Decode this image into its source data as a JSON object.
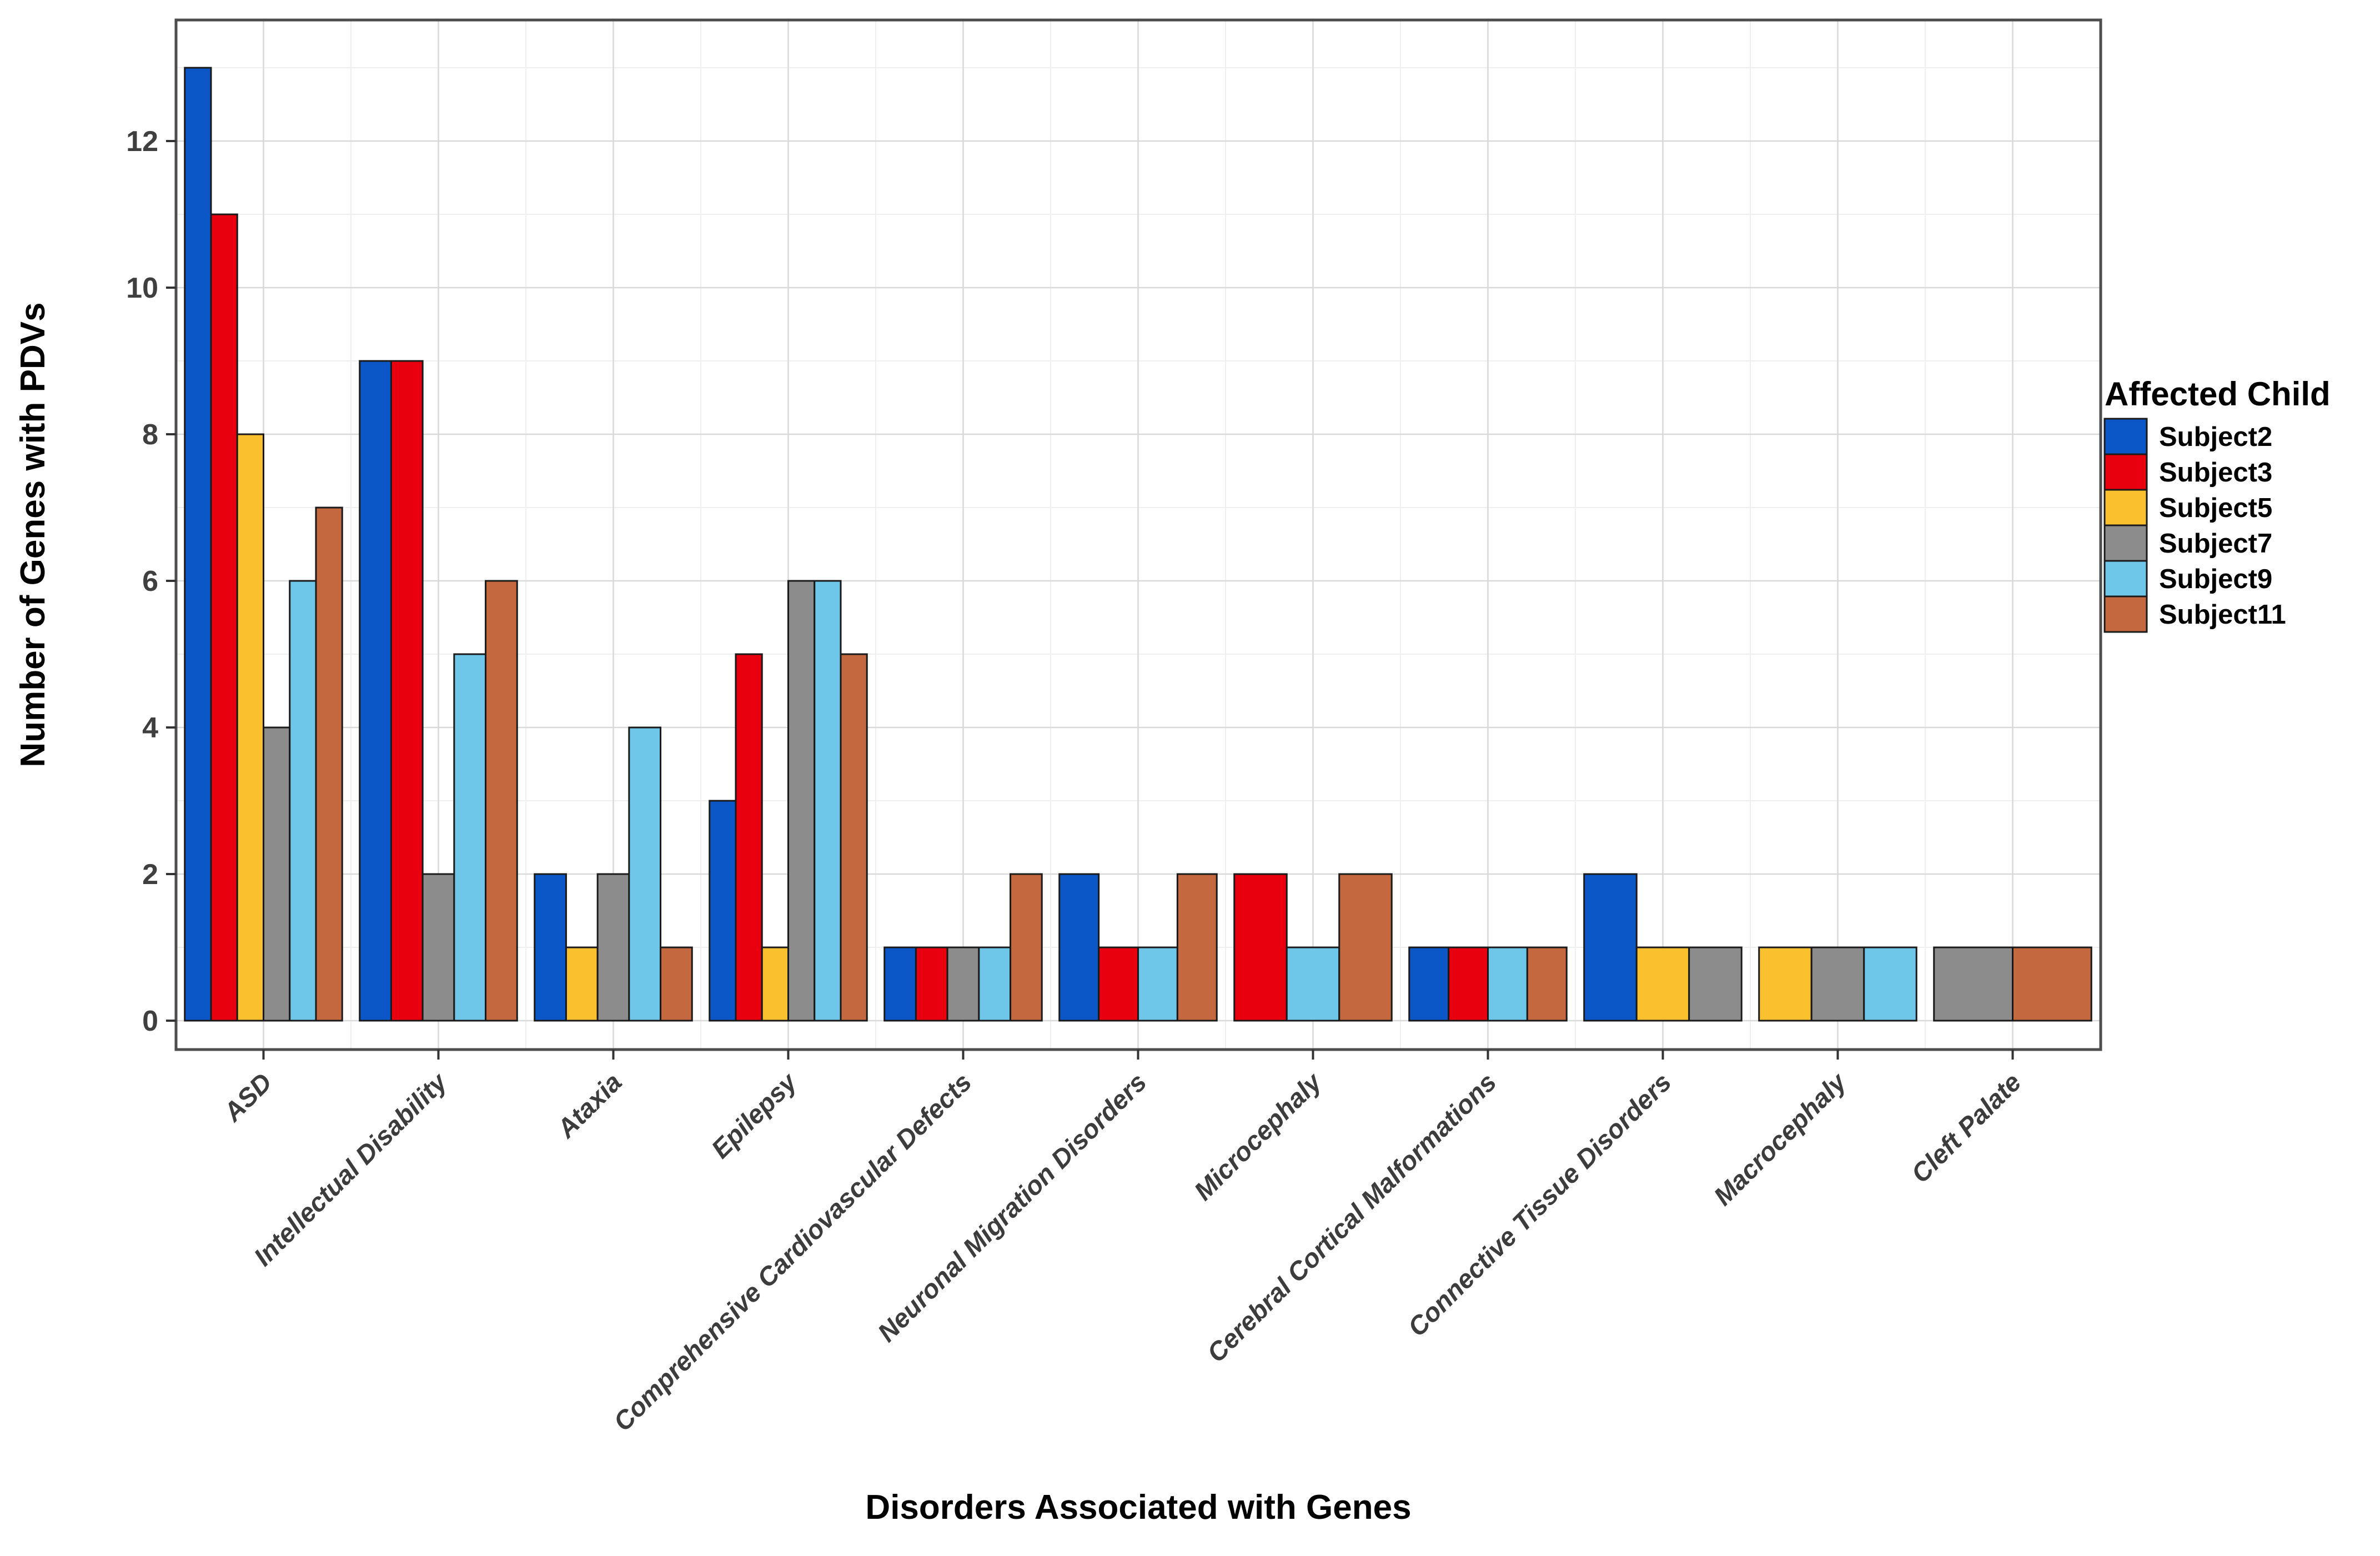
{
  "chart_data": {
    "type": "bar",
    "title": "",
    "xlabel": "Disorders Associated with Genes",
    "ylabel": "Number of Genes with PDVs",
    "categories": [
      "ASD",
      "Intellectual Disability",
      "Ataxia",
      "Epilepsy",
      "Comprehensive Cardiovascular Defects",
      "Neuronal Migration Disorders",
      "Microcephaly",
      "Cerebral Cortical Malformations",
      "Connective Tissue Disorders",
      "Macrocephaly",
      "Cleft Palate"
    ],
    "series": [
      {
        "name": "Subject2",
        "color": "#0B57C8",
        "values": [
          13,
          9,
          2,
          3,
          1,
          2,
          null,
          1,
          2,
          null,
          null
        ]
      },
      {
        "name": "Subject3",
        "color": "#E8000F",
        "values": [
          11,
          9,
          null,
          5,
          1,
          1,
          2,
          1,
          null,
          null,
          null
        ]
      },
      {
        "name": "Subject5",
        "color": "#FBC02D",
        "values": [
          8,
          null,
          1,
          1,
          null,
          null,
          null,
          null,
          1,
          1,
          null
        ]
      },
      {
        "name": "Subject7",
        "color": "#8C8C8C",
        "values": [
          4,
          2,
          2,
          6,
          1,
          null,
          null,
          null,
          1,
          1,
          1
        ]
      },
      {
        "name": "Subject9",
        "color": "#6EC6E9",
        "values": [
          6,
          5,
          4,
          6,
          1,
          1,
          1,
          1,
          null,
          1,
          null
        ]
      },
      {
        "name": "Subject11",
        "color": "#C4683F",
        "values": [
          7,
          6,
          1,
          5,
          2,
          2,
          2,
          1,
          null,
          null,
          1
        ]
      }
    ],
    "y_ticks": [
      0,
      2,
      4,
      6,
      8,
      10,
      12
    ],
    "ylim": [
      0,
      13.65
    ],
    "grid": "major and minor, horizontal and vertical",
    "legend": {
      "title": "Affected Child",
      "position": "right"
    },
    "bar_outline_color": "#1a1a1a",
    "panel_border_color": "#4d4d4d",
    "major_grid_color": "#d9d9d9",
    "minor_grid_color": "#efefef"
  }
}
